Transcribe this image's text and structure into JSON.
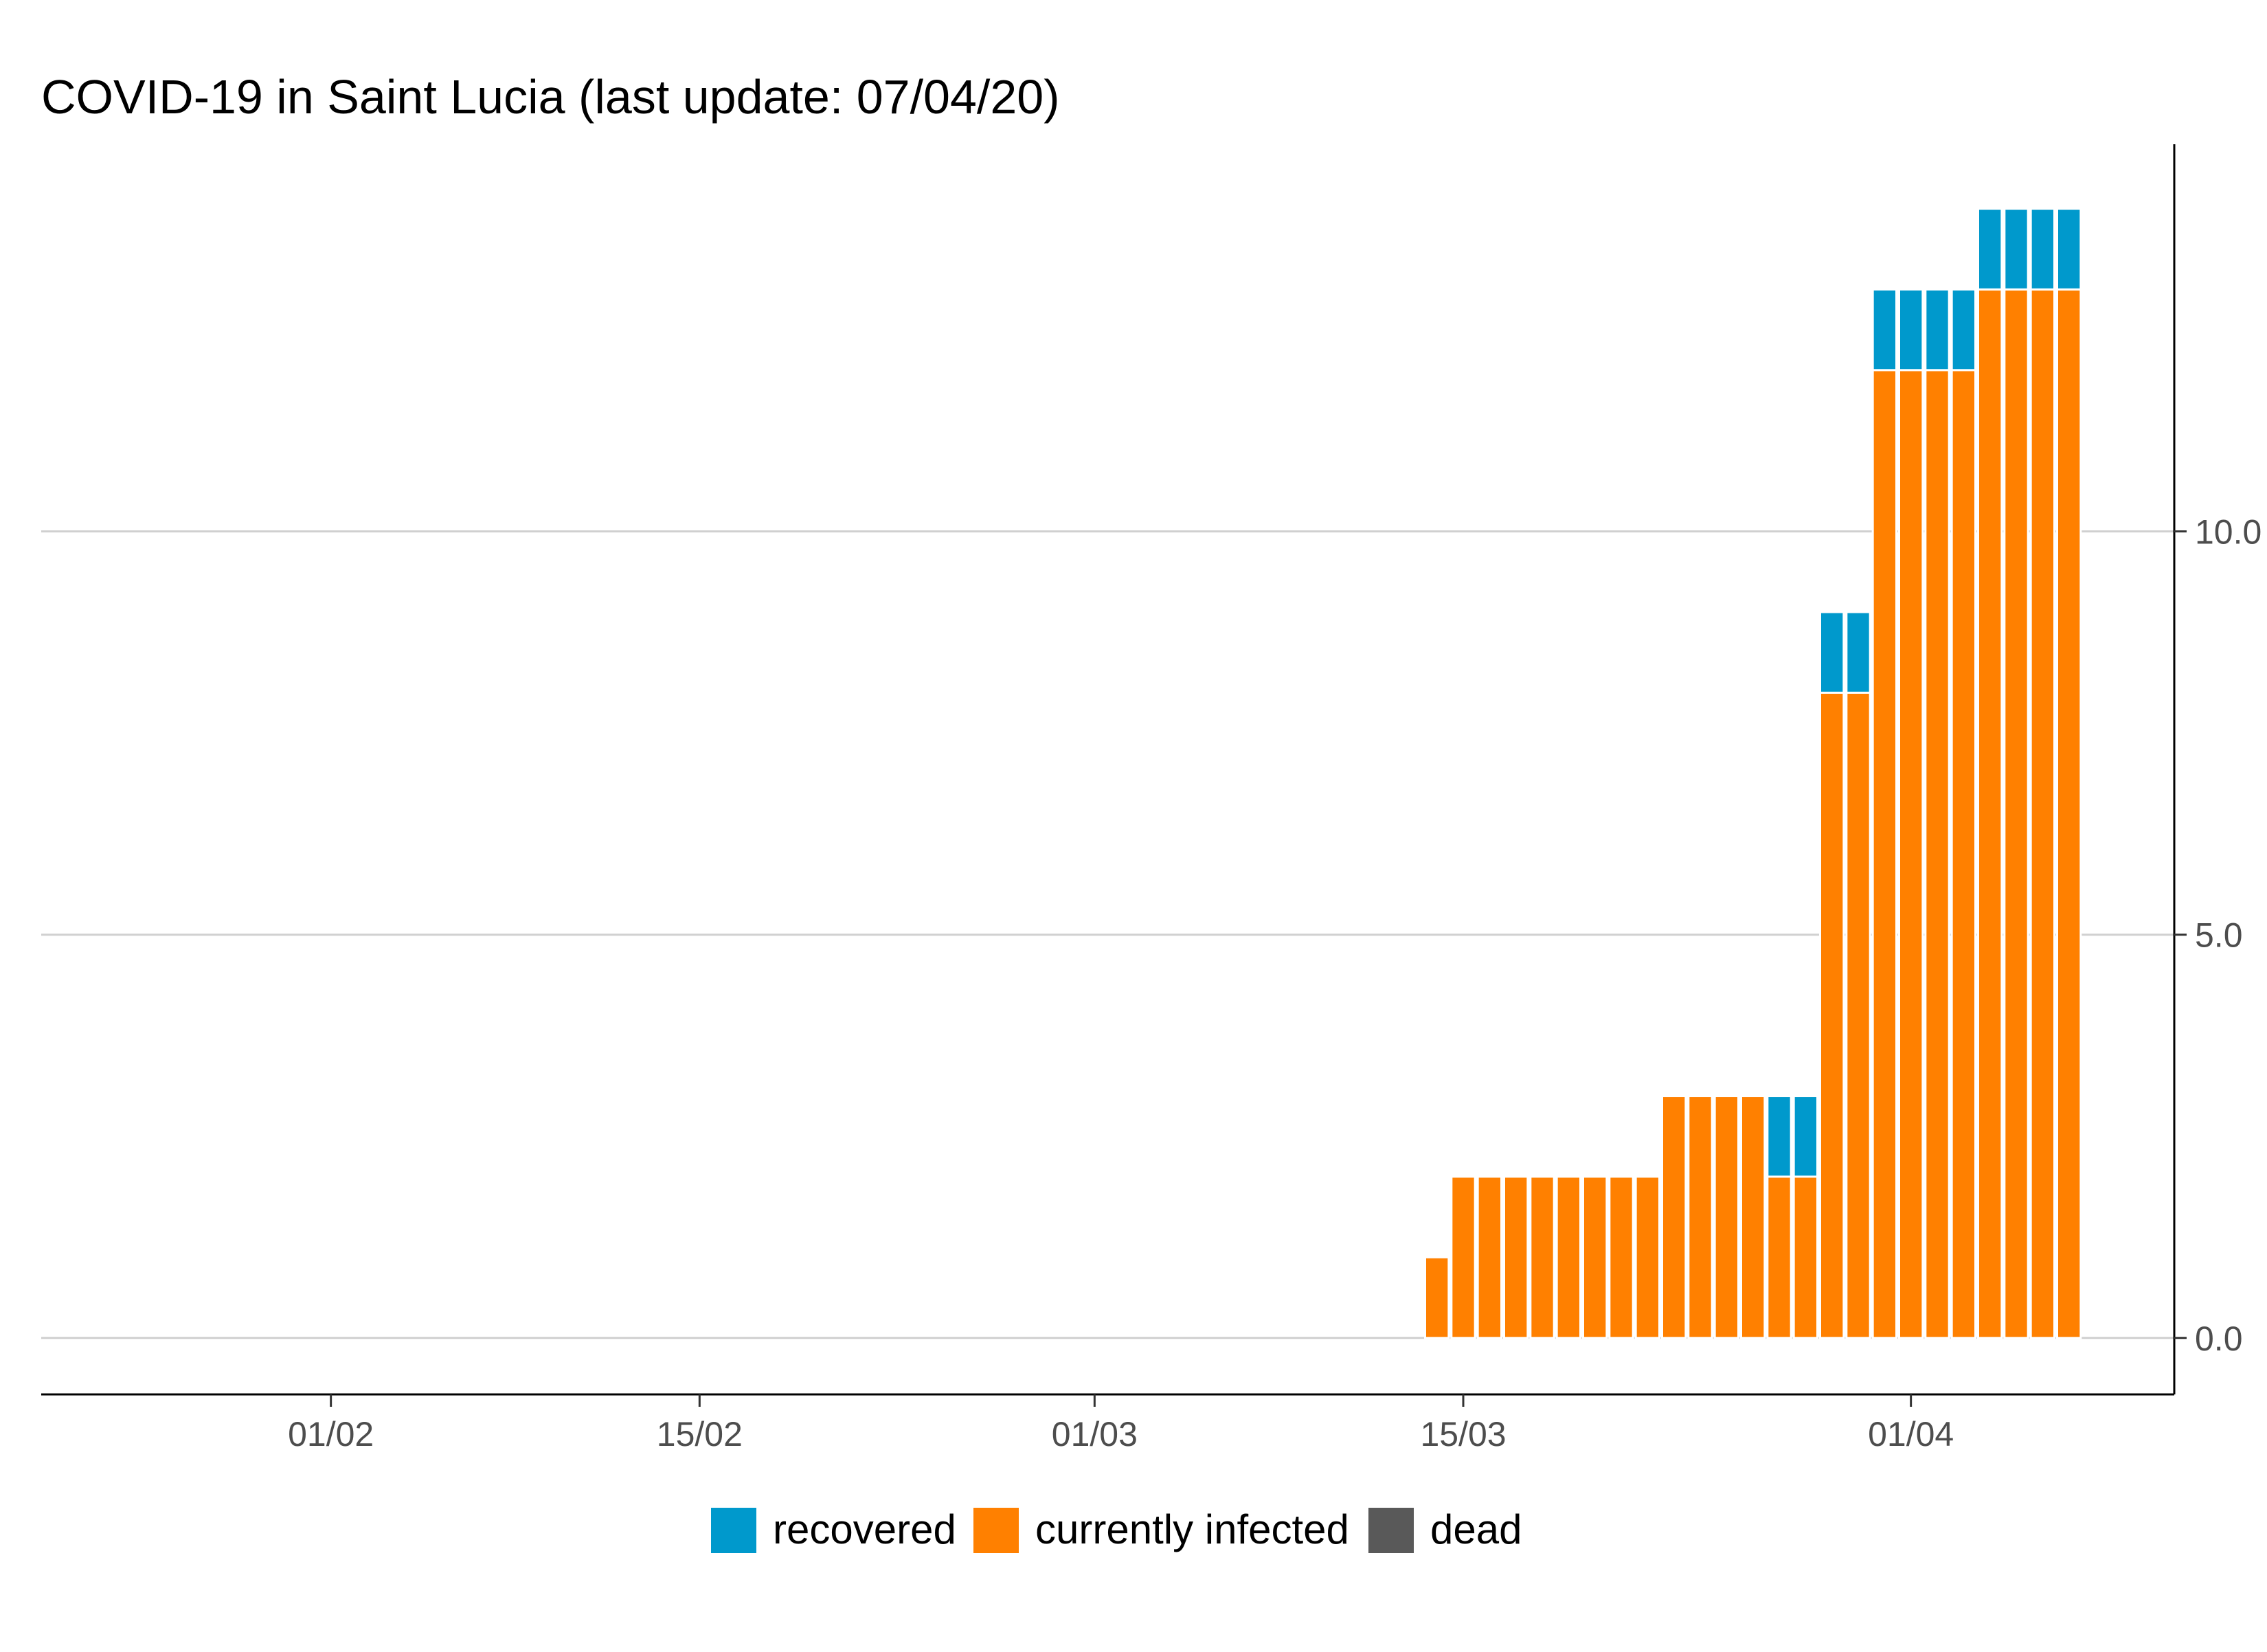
{
  "chart_data": {
    "type": "bar",
    "stacked": true,
    "title": "COVID-19 in Saint Lucia (last update: 07/04/20)",
    "xlabel": "",
    "ylabel": "",
    "xlim": [
      "2020-01-21",
      "2020-04-11"
    ],
    "ylim": [
      -0.7,
      14.8
    ],
    "y_ticks": [
      {
        "value": 0,
        "label": "0.0"
      },
      {
        "value": 5,
        "label": "5.0"
      },
      {
        "value": 10,
        "label": "10.0"
      }
    ],
    "x_ticks": [
      {
        "date": "2020-02-01",
        "label": "01/02"
      },
      {
        "date": "2020-02-15",
        "label": "15/02"
      },
      {
        "date": "2020-03-01",
        "label": "01/03"
      },
      {
        "date": "2020-03-15",
        "label": "15/03"
      },
      {
        "date": "2020-04-01",
        "label": "01/04"
      }
    ],
    "y_axis_position": "right",
    "grid": "horizontal",
    "legend": {
      "position": "bottom"
    },
    "dates": [
      "2020-03-14",
      "2020-03-15",
      "2020-03-16",
      "2020-03-17",
      "2020-03-18",
      "2020-03-19",
      "2020-03-20",
      "2020-03-21",
      "2020-03-22",
      "2020-03-23",
      "2020-03-24",
      "2020-03-25",
      "2020-03-26",
      "2020-03-27",
      "2020-03-28",
      "2020-03-29",
      "2020-03-30",
      "2020-03-31",
      "2020-04-01",
      "2020-04-02",
      "2020-04-03",
      "2020-04-04",
      "2020-04-05",
      "2020-04-06",
      "2020-04-07"
    ],
    "series": [
      {
        "name": "currently infected",
        "color": "#ff8000",
        "values": [
          1,
          2,
          2,
          2,
          2,
          2,
          2,
          2,
          2,
          3,
          3,
          3,
          3,
          2,
          2,
          8,
          8,
          12,
          12,
          12,
          12,
          13,
          13,
          13,
          13
        ]
      },
      {
        "name": "recovered",
        "color": "#0099cc",
        "values": [
          0,
          0,
          0,
          0,
          0,
          0,
          0,
          0,
          0,
          0,
          0,
          0,
          0,
          1,
          1,
          1,
          1,
          1,
          1,
          1,
          1,
          1,
          1,
          1,
          1
        ]
      },
      {
        "name": "dead",
        "color": "#595959",
        "values": [
          0,
          0,
          0,
          0,
          0,
          0,
          0,
          0,
          0,
          0,
          0,
          0,
          0,
          0,
          0,
          0,
          0,
          0,
          0,
          0,
          0,
          0,
          0,
          0,
          0
        ]
      }
    ],
    "legend_order": [
      "recovered",
      "currently infected",
      "dead"
    ]
  }
}
